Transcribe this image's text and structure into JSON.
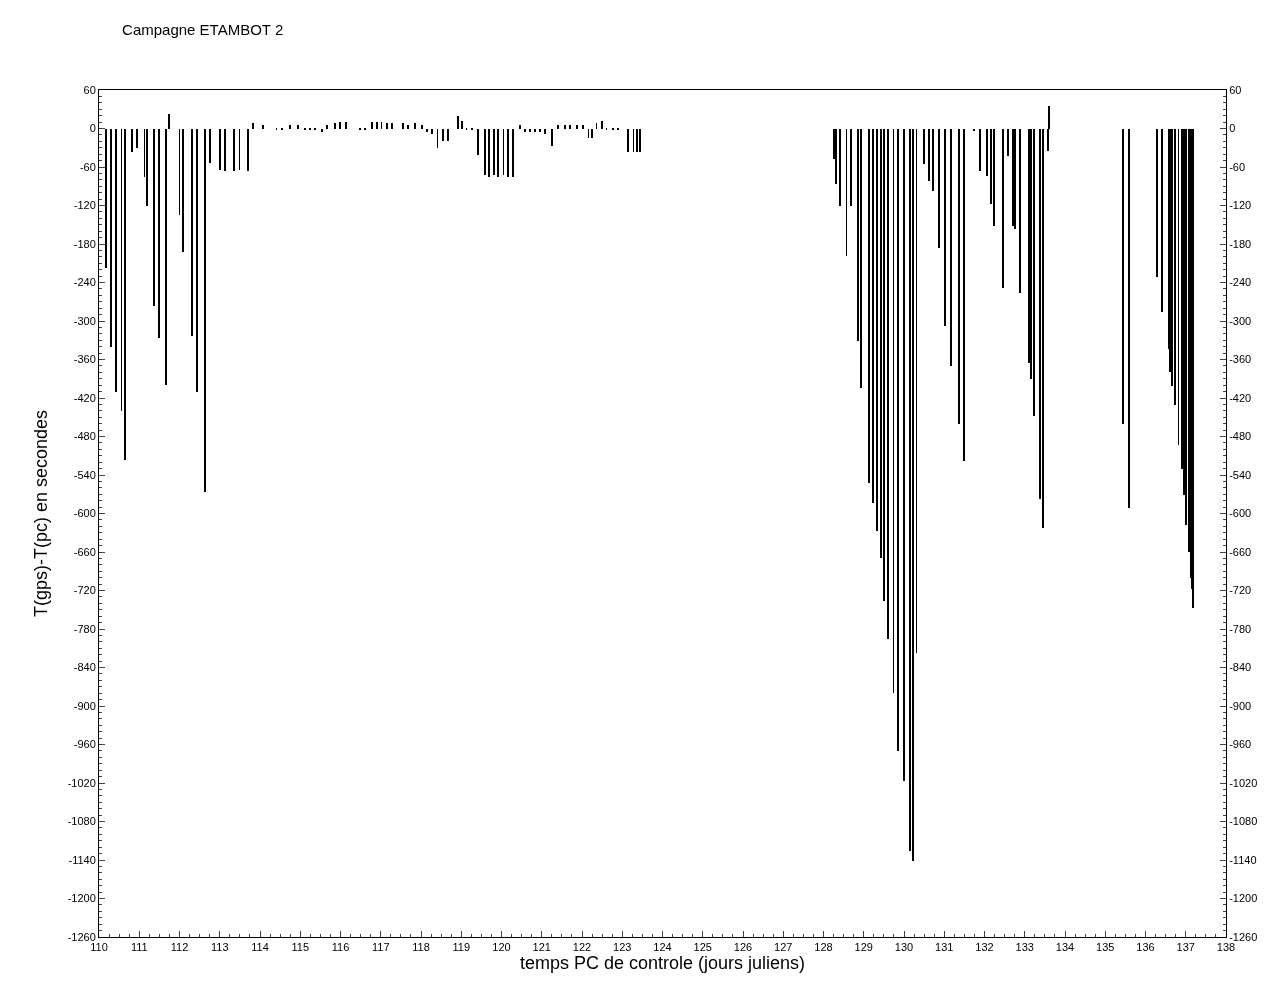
{
  "chart_data": {
    "type": "bar",
    "title": "Campagne ETAMBOT 2",
    "xlabel": "temps PC de controle (jours juliens)",
    "ylabel": "T(gps)-T(pc) en secondes",
    "color": "#000000",
    "x": [
      110.17,
      110.29,
      110.43,
      110.56,
      110.64,
      110.81,
      110.94,
      111.13,
      111.2,
      111.36,
      111.49,
      111.66,
      111.74,
      112.0,
      112.09,
      112.3,
      112.43,
      112.63,
      112.76,
      113.0,
      113.13,
      113.35,
      113.49,
      113.7,
      113.82,
      114.08,
      114.41,
      114.54,
      114.75,
      114.95,
      115.12,
      115.24,
      115.37,
      115.53,
      115.66,
      115.86,
      115.99,
      116.14,
      116.48,
      116.61,
      116.78,
      116.9,
      117.02,
      117.15,
      117.27,
      117.56,
      117.68,
      117.85,
      118.02,
      118.14,
      118.27,
      118.41,
      118.55,
      118.68,
      118.93,
      119.01,
      119.13,
      119.26,
      119.42,
      119.59,
      119.7,
      119.81,
      119.92,
      120.05,
      120.17,
      120.29,
      120.46,
      120.58,
      120.71,
      120.83,
      120.96,
      121.08,
      121.25,
      121.41,
      121.58,
      121.7,
      121.87,
      122.03,
      122.16,
      122.24,
      122.36,
      122.49,
      122.61,
      122.78,
      122.9,
      123.15,
      123.28,
      123.36,
      123.44,
      128.26,
      128.32,
      128.41,
      128.57,
      128.68,
      128.86,
      128.94,
      129.12,
      129.24,
      129.34,
      129.43,
      129.51,
      129.6,
      129.74,
      129.86,
      130.0,
      130.15,
      130.22,
      130.31,
      130.5,
      130.62,
      130.72,
      130.86,
      131.02,
      131.16,
      131.37,
      131.5,
      131.74,
      131.89,
      132.07,
      132.16,
      132.24,
      132.45,
      132.58,
      132.71,
      132.76,
      132.89,
      133.11,
      133.15,
      133.24,
      133.38,
      133.45,
      133.57,
      133.61,
      135.45,
      135.6,
      136.29,
      136.42,
      136.57,
      136.61,
      136.65,
      136.74,
      136.82,
      136.9,
      136.96,
      137.01,
      137.09,
      137.12,
      137.16,
      137.19
    ],
    "values": [
      -218,
      -340,
      -410,
      -441,
      -517,
      -36,
      -31,
      -75,
      -120,
      -276,
      -327,
      -400,
      23,
      -135,
      -192,
      -323,
      -410,
      -566,
      -53,
      -64,
      -67,
      -67,
      -64,
      -67,
      9,
      6,
      -3,
      -3,
      5,
      6,
      -3,
      -3,
      -3,
      -5,
      5,
      8,
      10,
      10,
      -3,
      -3,
      10,
      10,
      10,
      8,
      8,
      9,
      5,
      8,
      5,
      -5,
      -8,
      -31,
      -20,
      -20,
      20,
      12,
      -2,
      -2,
      -42,
      -72,
      -75,
      -72,
      -75,
      -72,
      -75,
      -75,
      5,
      -5,
      -5,
      -5,
      -5,
      -8,
      -28,
      5,
      5,
      5,
      5,
      5,
      -15,
      -15,
      8,
      12,
      -2,
      -3,
      -3,
      -36,
      -36,
      -36,
      -36,
      -47,
      -86,
      -121,
      -199,
      -121,
      -331,
      -405,
      -553,
      -584,
      -627,
      -670,
      -736,
      -795,
      -880,
      -970,
      -1017,
      -1126,
      -1141,
      -818,
      -55,
      -82,
      -97,
      -187,
      -308,
      -370,
      -460,
      -518,
      -4,
      -66,
      -74,
      -117,
      -152,
      -249,
      -43,
      -152,
      -156,
      -257,
      -366,
      -390,
      -448,
      -577,
      -623,
      -35,
      35,
      -460,
      -592,
      -231,
      -286,
      -343,
      -379,
      -402,
      -431,
      -494,
      -530,
      -571,
      -618,
      -660,
      -701,
      -717,
      -748
    ],
    "xlim": [
      110,
      138
    ],
    "xticks": [
      110,
      111,
      112,
      113,
      114,
      115,
      116,
      117,
      118,
      119,
      120,
      121,
      122,
      123,
      124,
      125,
      126,
      127,
      128,
      129,
      130,
      131,
      132,
      133,
      134,
      135,
      136,
      137,
      138
    ],
    "ylim": [
      -1260,
      60
    ],
    "yticks": [
      60,
      0,
      -60,
      -120,
      -180,
      -240,
      -300,
      -360,
      -420,
      -480,
      -540,
      -600,
      -660,
      -720,
      -780,
      -840,
      -900,
      -960,
      -1020,
      -1080,
      -1140,
      -1200,
      -1260
    ],
    "y2lim": [
      -1260,
      60
    ],
    "y2ticks": [
      60,
      0,
      -60,
      -120,
      -180,
      -240,
      -300,
      -360,
      -420,
      -480,
      -540,
      -600,
      -660,
      -720,
      -780,
      -840,
      -900,
      -960,
      -1020,
      -1080,
      -1140,
      -1200,
      -1260
    ]
  }
}
